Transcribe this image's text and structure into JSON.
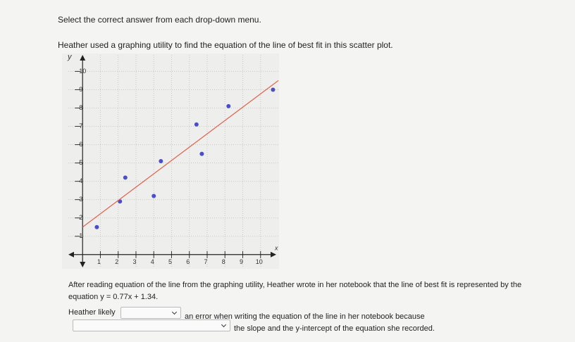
{
  "instruction": "Select the correct answer from each drop-down menu.",
  "question": "Heather used a graphing utility to find the equation of the line of best fit in this scatter plot.",
  "chart_data": {
    "type": "scatter",
    "x_label": "x",
    "y_label": "y",
    "xlim": [
      -0.8,
      11
    ],
    "ylim": [
      -0.7,
      10.9
    ],
    "xticks": [
      1,
      2,
      3,
      4,
      5,
      6,
      7,
      8,
      9,
      10
    ],
    "yticks": [
      1,
      2,
      3,
      4,
      5,
      6,
      7,
      8,
      9,
      10
    ],
    "grid": true,
    "series": [
      {
        "type": "scatter",
        "color": "#4a4fc8",
        "x": [
          0.8,
          2.1,
          2.4,
          4.0,
          4.4,
          6.4,
          6.7,
          8.2,
          10.7
        ],
        "y": [
          1.5,
          2.9,
          4.2,
          3.2,
          5.1,
          7.1,
          5.5,
          8.1,
          9.0
        ]
      },
      {
        "type": "line",
        "color": "#e0604a",
        "x": [
          0,
          11
        ],
        "y": [
          1.5,
          9.5
        ]
      }
    ]
  },
  "passage": "After reading equation of the line from the graphing utility, Heather wrote in her notebook that the line of best fit is represented by the equation y = 0.77x + 1.34.",
  "answer_line_1": {
    "before": "Heather likely",
    "after": "an error when writing the equation of the line in her notebook because"
  },
  "answer_line_2": {
    "after": "the slope and the y-intercept of the equation she recorded."
  }
}
